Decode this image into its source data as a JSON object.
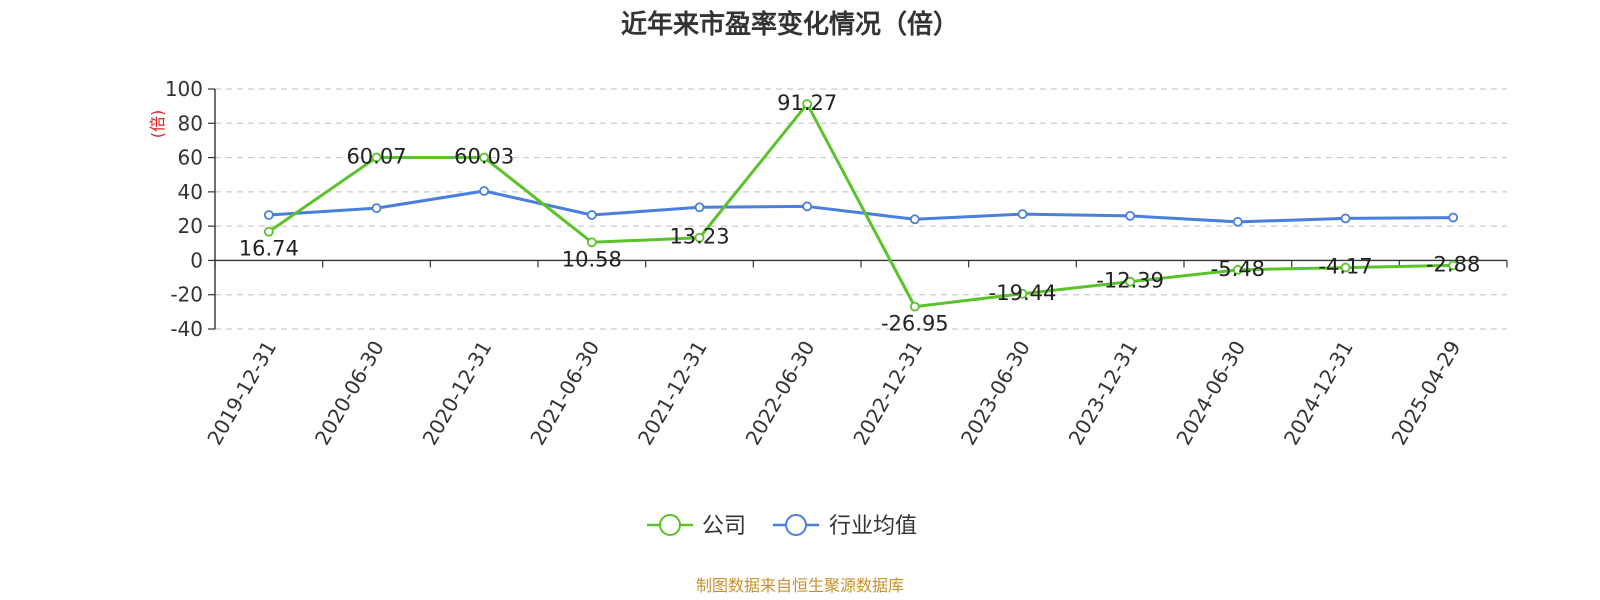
{
  "chart_data": {
    "type": "line",
    "title": "近年来市盈率变化情况（倍）",
    "ylabel": "(倍)",
    "ylim": [
      -40,
      100
    ],
    "yticks": [
      100,
      80,
      60,
      40,
      20,
      0,
      -20,
      -40
    ],
    "grid": true,
    "legend_position": "bottom-center",
    "categories": [
      "2019-12-31",
      "2020-06-30",
      "2020-12-31",
      "2021-06-30",
      "2021-12-31",
      "2022-06-30",
      "2022-12-31",
      "2023-06-30",
      "2023-12-31",
      "2024-06-30",
      "2024-12-31",
      "2025-04-29"
    ],
    "series": [
      {
        "name": "公司",
        "color": "#5cc22c",
        "values": [
          16.74,
          60.07,
          60.03,
          10.58,
          13.23,
          91.27,
          -26.95,
          -19.44,
          -12.39,
          -5.48,
          -4.17,
          -2.88
        ],
        "labels": [
          "16.74",
          "60.07",
          "60.03",
          "10.58",
          "13.23",
          "91.27",
          "-26.95",
          "-19.44",
          "-12.39",
          "-5.48",
          "-4.17",
          "-2.88"
        ]
      },
      {
        "name": "行业均值",
        "color": "#4a7fdd",
        "values": [
          26.5,
          30.5,
          40.5,
          26.5,
          31.0,
          31.5,
          24.0,
          27.0,
          26.0,
          22.5,
          24.5,
          25.0
        ]
      }
    ],
    "ylabel_color": "#e02020"
  },
  "source": {
    "text": "制图数据来自恒生聚源数据库",
    "color": "#c8902c"
  }
}
